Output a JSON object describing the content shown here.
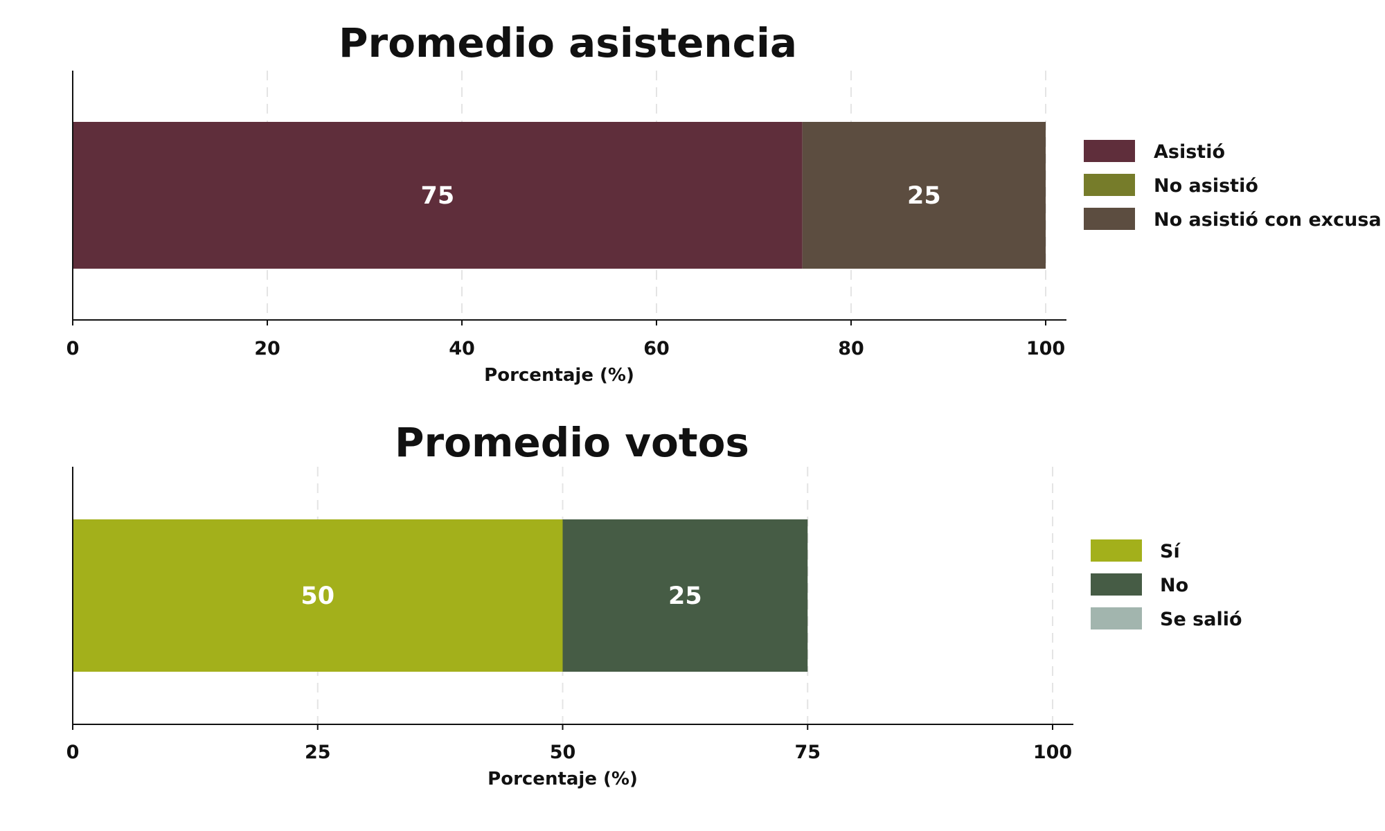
{
  "chart_data": [
    {
      "type": "bar",
      "orientation": "horizontal",
      "stacked": true,
      "title": "Promedio asistencia",
      "xlabel": "Porcentaje (%)",
      "ylabel": "",
      "xlim": [
        0,
        100
      ],
      "xticks": [
        0,
        20,
        40,
        60,
        80,
        100
      ],
      "grid": "vertical dashed",
      "legend_position": "right",
      "series": [
        {
          "name": "Asistió",
          "value": 75,
          "color": "#5f2e3b",
          "label": "75"
        },
        {
          "name": "No asistió",
          "value": 0,
          "color": "#767c2a",
          "label": ""
        },
        {
          "name": "No asistió con excusa",
          "value": 25,
          "color": "#5c4d40",
          "label": "25"
        }
      ]
    },
    {
      "type": "bar",
      "orientation": "horizontal",
      "stacked": true,
      "title": "Promedio votos",
      "xlabel": "Porcentaje (%)",
      "ylabel": "",
      "xlim": [
        0,
        100
      ],
      "xticks": [
        0,
        25,
        50,
        75,
        100
      ],
      "grid": "vertical dashed",
      "legend_position": "right",
      "series": [
        {
          "name": "Sí",
          "value": 50,
          "color": "#a3b01b",
          "label": "50"
        },
        {
          "name": "No",
          "value": 25,
          "color": "#465c45",
          "label": "25"
        },
        {
          "name": "Se salió",
          "value": 0,
          "color": "#a2b5ae",
          "label": ""
        }
      ]
    }
  ]
}
